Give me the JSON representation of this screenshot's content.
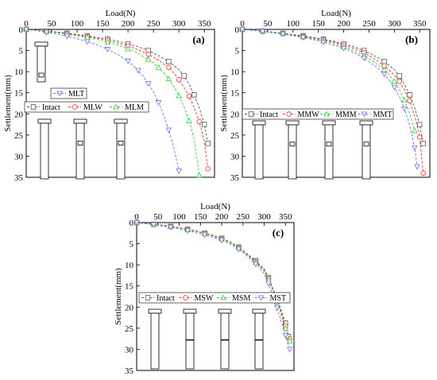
{
  "colors": {
    "intact": "#555555",
    "w": "#e8312f",
    "m": "#33cc33",
    "t": "#6f6fe8"
  },
  "chart_data": [
    {
      "type": "line",
      "panel_label": "(a)",
      "xlabel": "Load(N)",
      "ylabel": "Settlement(mm)",
      "xlim": [
        0,
        370
      ],
      "ylim": [
        0,
        35
      ],
      "y_inverted": true,
      "x_axis_position": "top",
      "xticks": [
        0,
        50,
        100,
        150,
        200,
        250,
        300,
        350
      ],
      "yticks": [
        0,
        5,
        10,
        15,
        20,
        25,
        30,
        35
      ],
      "legend": [
        "MLT",
        "Intact",
        "MLW",
        "MLM"
      ],
      "series": [
        {
          "name": "Intact",
          "marker": "square",
          "color_key": "intact",
          "x": [
            0,
            20,
            40,
            60,
            80,
            100,
            120,
            140,
            160,
            180,
            200,
            220,
            240,
            260,
            280,
            300,
            310,
            320,
            330,
            340,
            350,
            357
          ],
          "y": [
            0,
            0.2,
            0.4,
            0.6,
            0.9,
            1.2,
            1.5,
            1.9,
            2.3,
            2.8,
            3.4,
            4.1,
            5.0,
            6.2,
            7.6,
            9.5,
            11.0,
            13.0,
            15.5,
            18.5,
            22.5,
            27.0
          ]
        },
        {
          "name": "MLW",
          "marker": "circle",
          "color_key": "w",
          "x": [
            0,
            20,
            40,
            60,
            80,
            100,
            120,
            140,
            160,
            180,
            200,
            220,
            240,
            260,
            280,
            290,
            300,
            310,
            320,
            330,
            340,
            350,
            357
          ],
          "y": [
            0,
            0.2,
            0.4,
            0.7,
            1.0,
            1.3,
            1.7,
            2.1,
            2.6,
            3.2,
            3.9,
            4.8,
            5.9,
            7.3,
            9.0,
            10.3,
            11.9,
            13.7,
            15.8,
            18.5,
            21.8,
            26.5,
            33.0
          ]
        },
        {
          "name": "MLM",
          "marker": "triangle-up",
          "color_key": "m",
          "x": [
            0,
            20,
            40,
            60,
            80,
            100,
            120,
            140,
            160,
            180,
            200,
            220,
            240,
            250,
            260,
            270,
            280,
            290,
            300,
            310,
            320,
            330,
            340
          ],
          "y": [
            0,
            0.2,
            0.5,
            0.8,
            1.1,
            1.5,
            1.9,
            2.4,
            3.0,
            3.7,
            4.6,
            5.7,
            7.1,
            7.9,
            9.0,
            10.2,
            11.7,
            13.5,
            15.7,
            18.3,
            21.6,
            26.0,
            34.5
          ]
        },
        {
          "name": "MLT",
          "marker": "triangle-down",
          "color_key": "t",
          "x": [
            0,
            20,
            40,
            60,
            80,
            100,
            120,
            140,
            160,
            180,
            200,
            210,
            220,
            230,
            240,
            250,
            260,
            270,
            280,
            290,
            300
          ],
          "y": [
            0,
            0.3,
            0.7,
            1.1,
            1.6,
            2.2,
            2.9,
            3.7,
            4.7,
            5.9,
            7.5,
            8.5,
            9.7,
            11.1,
            12.8,
            14.8,
            17.3,
            20.3,
            23.8,
            28.0,
            33.5
          ]
        }
      ]
    },
    {
      "type": "line",
      "panel_label": "(b)",
      "xlabel": "Load(N)",
      "ylabel": "Settlement(mm)",
      "xlim": [
        0,
        370
      ],
      "ylim": [
        0,
        35
      ],
      "y_inverted": true,
      "x_axis_position": "top",
      "xticks": [
        0,
        50,
        100,
        150,
        200,
        250,
        300,
        350
      ],
      "yticks": [
        0,
        5,
        10,
        15,
        20,
        25,
        30,
        35
      ],
      "legend": [
        "Intact",
        "MMW",
        "MMM",
        "MMT"
      ],
      "series": [
        {
          "name": "Intact",
          "marker": "square",
          "color_key": "intact",
          "x": [
            0,
            20,
            40,
            60,
            80,
            100,
            120,
            140,
            160,
            180,
            200,
            220,
            240,
            260,
            280,
            300,
            310,
            320,
            330,
            340,
            350,
            357
          ],
          "y": [
            0,
            0.2,
            0.4,
            0.6,
            0.9,
            1.2,
            1.5,
            1.9,
            2.3,
            2.8,
            3.4,
            4.1,
            5.0,
            6.2,
            7.6,
            9.5,
            11.0,
            13.0,
            15.5,
            18.5,
            22.5,
            27.0
          ]
        },
        {
          "name": "MMW",
          "marker": "circle",
          "color_key": "w",
          "x": [
            0,
            20,
            40,
            60,
            80,
            100,
            120,
            140,
            160,
            180,
            200,
            220,
            240,
            260,
            280,
            300,
            310,
            320,
            330,
            340,
            350,
            357
          ],
          "y": [
            0,
            0.2,
            0.4,
            0.7,
            1.0,
            1.3,
            1.6,
            2.0,
            2.5,
            3.0,
            3.7,
            4.5,
            5.5,
            6.9,
            8.6,
            10.8,
            12.3,
            14.3,
            16.9,
            20.4,
            25.5,
            34.0
          ]
        },
        {
          "name": "MMM",
          "marker": "triangle-up",
          "color_key": "m",
          "x": [
            0,
            20,
            40,
            60,
            80,
            100,
            120,
            140,
            160,
            180,
            200,
            220,
            240,
            260,
            280,
            290,
            300,
            310,
            320,
            330,
            340
          ],
          "y": [
            0,
            0.2,
            0.4,
            0.7,
            1.0,
            1.4,
            1.8,
            2.2,
            2.7,
            3.3,
            4.1,
            5.0,
            6.2,
            7.7,
            9.6,
            10.8,
            12.3,
            14.2,
            16.7,
            19.8,
            24.0
          ]
        },
        {
          "name": "MMT",
          "marker": "triangle-down",
          "color_key": "t",
          "x": [
            0,
            20,
            40,
            60,
            80,
            100,
            120,
            140,
            160,
            180,
            200,
            220,
            240,
            260,
            280,
            290,
            300,
            310,
            320,
            330,
            340,
            345
          ],
          "y": [
            0,
            0.2,
            0.5,
            0.8,
            1.1,
            1.5,
            1.9,
            2.4,
            3.0,
            3.7,
            4.5,
            5.5,
            6.8,
            8.5,
            10.6,
            12.0,
            13.7,
            15.9,
            18.8,
            22.6,
            28.0,
            32.5
          ]
        }
      ]
    },
    {
      "type": "line",
      "panel_label": "(c)",
      "xlabel": "Load(N)",
      "ylabel": "Settlement(mm)",
      "xlim": [
        0,
        370
      ],
      "ylim": [
        0,
        35
      ],
      "y_inverted": true,
      "x_axis_position": "top",
      "xticks": [
        0,
        50,
        100,
        150,
        200,
        250,
        300,
        350
      ],
      "yticks": [
        0,
        5,
        10,
        15,
        20,
        25,
        30,
        35
      ],
      "legend": [
        "Intact",
        "MSW",
        "MSM",
        "MST"
      ],
      "series": [
        {
          "name": "Intact",
          "marker": "square",
          "color_key": "intact",
          "x": [
            0,
            20,
            40,
            60,
            80,
            100,
            120,
            140,
            160,
            180,
            200,
            220,
            240,
            260,
            280,
            300,
            310,
            320,
            330,
            340,
            350,
            357
          ],
          "y": [
            0,
            0.2,
            0.4,
            0.6,
            0.9,
            1.2,
            1.6,
            2.0,
            2.5,
            3.0,
            3.7,
            4.6,
            5.8,
            7.4,
            9.0,
            11.0,
            13.0,
            15.5,
            18.0,
            20.7,
            23.8,
            27.0
          ]
        },
        {
          "name": "MSW",
          "marker": "circle",
          "color_key": "w",
          "x": [
            0,
            20,
            40,
            60,
            80,
            100,
            120,
            140,
            160,
            180,
            200,
            220,
            240,
            260,
            280,
            300,
            310,
            320,
            330,
            340,
            350,
            360
          ],
          "y": [
            0,
            0.2,
            0.4,
            0.6,
            0.9,
            1.2,
            1.6,
            2.0,
            2.5,
            3.1,
            3.8,
            4.7,
            5.9,
            7.5,
            9.2,
            11.2,
            13.2,
            15.6,
            18.3,
            21.3,
            24.5,
            27.5
          ]
        },
        {
          "name": "MSM",
          "marker": "triangle-up",
          "color_key": "m",
          "x": [
            0,
            20,
            40,
            60,
            80,
            100,
            120,
            140,
            160,
            180,
            200,
            220,
            240,
            260,
            280,
            300,
            310,
            320,
            330,
            340,
            350,
            360
          ],
          "y": [
            0,
            0.2,
            0.4,
            0.7,
            1.0,
            1.3,
            1.7,
            2.1,
            2.6,
            3.2,
            3.9,
            4.8,
            6.0,
            7.6,
            9.4,
            11.5,
            13.5,
            16.0,
            18.8,
            21.9,
            25.0,
            28.0
          ]
        },
        {
          "name": "MST",
          "marker": "triangle-down",
          "color_key": "t",
          "x": [
            0,
            20,
            40,
            60,
            80,
            100,
            120,
            140,
            160,
            180,
            200,
            220,
            240,
            260,
            280,
            300,
            310,
            320,
            330,
            340,
            350,
            360
          ],
          "y": [
            0,
            0.2,
            0.5,
            0.8,
            1.1,
            1.5,
            1.9,
            2.4,
            2.9,
            3.5,
            4.2,
            5.1,
            6.3,
            7.9,
            9.8,
            12.0,
            14.4,
            17.2,
            20.2,
            23.4,
            26.7,
            30.0
          ]
        }
      ]
    }
  ]
}
